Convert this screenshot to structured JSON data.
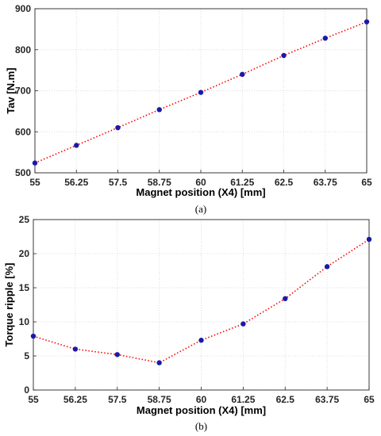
{
  "chart_data": [
    {
      "type": "line",
      "caption": "(a)",
      "xlabel": "Magnet position (X4) [mm]",
      "ylabel": "Tav [N.m]",
      "x": [
        55,
        56.25,
        57.5,
        58.75,
        60,
        61.25,
        62.5,
        63.75,
        65
      ],
      "x_tick_labels": [
        "55",
        "56.25",
        "57.5",
        "58.75",
        "60",
        "61.25",
        "62.5",
        "63.75",
        "65"
      ],
      "y_tick_values": [
        500,
        600,
        700,
        800,
        900
      ],
      "y_tick_labels": [
        "500",
        "600",
        "700",
        "800",
        "900"
      ],
      "xlim": [
        55,
        65
      ],
      "ylim": [
        500,
        900
      ],
      "grid": true,
      "series": [
        {
          "values": [
            524,
            567,
            610,
            654,
            696,
            740,
            786,
            828,
            868
          ],
          "color": "#ff0000",
          "marker_color": "#1a1aa8"
        }
      ]
    },
    {
      "type": "line",
      "caption": "(b)",
      "xlabel": "Magnet position (X4) [mm]",
      "ylabel": "Torque ripple [%]",
      "x": [
        55,
        56.25,
        57.5,
        58.75,
        60,
        61.25,
        62.5,
        63.75,
        65
      ],
      "x_tick_labels": [
        "55",
        "56.25",
        "57.5",
        "58.75",
        "60",
        "61.25",
        "62.5",
        "63.75",
        "65"
      ],
      "y_tick_values": [
        0,
        5,
        10,
        15,
        20,
        25
      ],
      "y_tick_labels": [
        "0",
        "5",
        "10",
        "15",
        "20",
        "25"
      ],
      "xlim": [
        55,
        65
      ],
      "ylim": [
        0,
        25
      ],
      "grid": true,
      "series": [
        {
          "values": [
            7.9,
            6.0,
            5.2,
            4.0,
            7.3,
            9.7,
            13.4,
            18.1,
            22.1
          ],
          "color": "#ff0000",
          "marker_color": "#1a1aa8"
        }
      ]
    }
  ]
}
